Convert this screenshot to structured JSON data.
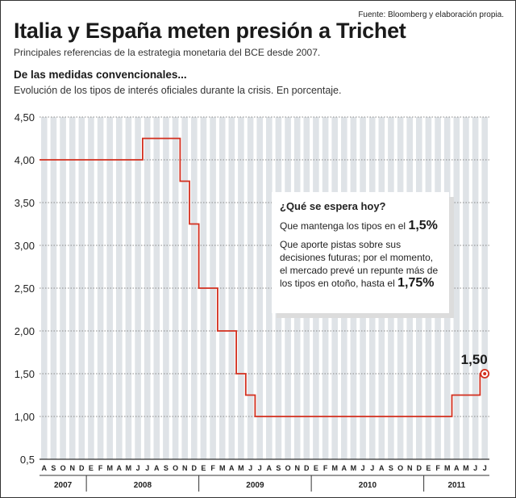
{
  "header": {
    "source": "Fuente: Bloomberg y elaboración propia.",
    "headline": "Italia y España meten presión a Trichet",
    "subtitle": "Principales referencias de la estrategia monetaria del BCE desde 2007."
  },
  "callout": {
    "title": "¿Qué se espera hoy?",
    "line1_text": "Que mantenga los tipos en el ",
    "line1_value": "1,5%",
    "line2_text": "Que aporte pistas sobre sus decisiones futuras; por el momento, el mercado prevé un repunte más de los tipos en otoño, hasta el ",
    "line2_value": "1,75%"
  },
  "colors": {
    "line": "#d32f1e",
    "bar": "#dfe3e7",
    "grid": "#888888",
    "axis": "#333333",
    "text": "#222222"
  },
  "chart_data": {
    "type": "line",
    "title": "De las medidas convencionales...",
    "subtitle": "Evolución de los tipos de interés oficiales durante la crisis. En porcentaje.",
    "ylim": [
      0.5,
      4.5
    ],
    "yticks": [
      "0,5",
      "1,00",
      "1,50",
      "2,00",
      "2,50",
      "3,00",
      "3,50",
      "4,00",
      "4,50"
    ],
    "month_labels": [
      "A",
      "S",
      "O",
      "N",
      "D",
      "E",
      "F",
      "M",
      "A",
      "M",
      "J",
      "J",
      "A",
      "S",
      "O",
      "N",
      "D",
      "E",
      "F",
      "M",
      "A",
      "M",
      "J",
      "J",
      "A",
      "S",
      "O",
      "N",
      "D",
      "E",
      "F",
      "M",
      "A",
      "M",
      "J",
      "J",
      "A",
      "S",
      "O",
      "N",
      "D",
      "E",
      "F",
      "M",
      "A",
      "M",
      "J",
      "J"
    ],
    "years": [
      {
        "label": "2007",
        "from": 0,
        "to": 4
      },
      {
        "label": "2008",
        "from": 5,
        "to": 16
      },
      {
        "label": "2009",
        "from": 17,
        "to": 28
      },
      {
        "label": "2010",
        "from": 29,
        "to": 40
      },
      {
        "label": "2011",
        "from": 41,
        "to": 47
      }
    ],
    "grid": true,
    "series": [
      {
        "steps": [
          {
            "month": 0,
            "value": 4.0
          },
          {
            "month": 11,
            "value": 4.25
          },
          {
            "month": 15,
            "value": 3.75
          },
          {
            "month": 16,
            "value": 3.25
          },
          {
            "month": 17,
            "value": 2.5
          },
          {
            "month": 19,
            "value": 2.0
          },
          {
            "month": 21,
            "value": 1.5
          },
          {
            "month": 22,
            "value": 1.25
          },
          {
            "month": 23,
            "value": 1.0
          },
          {
            "month": 44,
            "value": 1.25
          },
          {
            "month": 47,
            "value": 1.5
          }
        ]
      }
    ],
    "annotations": [
      {
        "text": "1,50",
        "month": 47,
        "value": 1.5
      }
    ]
  }
}
